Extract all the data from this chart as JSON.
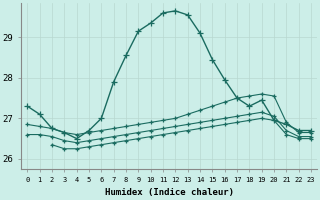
{
  "xlabel": "Humidex (Indice chaleur)",
  "background_color": "#cceee8",
  "line_color": "#1a6b60",
  "xlim": [
    -0.5,
    23.5
  ],
  "ylim": [
    25.75,
    29.85
  ],
  "yticks": [
    26,
    27,
    28,
    29
  ],
  "xticks": [
    0,
    1,
    2,
    3,
    4,
    5,
    6,
    7,
    8,
    9,
    10,
    11,
    12,
    13,
    14,
    15,
    16,
    17,
    18,
    19,
    20,
    21,
    22,
    23
  ],
  "series": [
    {
      "x": [
        0,
        1,
        2,
        3,
        4,
        5,
        6,
        7,
        8,
        9,
        10,
        11,
        12,
        13,
        14,
        15,
        16,
        17,
        18,
        19,
        20,
        21,
        22,
        23
      ],
      "y": [
        27.3,
        27.1,
        26.75,
        26.65,
        26.5,
        26.7,
        27.0,
        27.9,
        28.55,
        29.15,
        29.35,
        29.6,
        29.65,
        29.55,
        29.1,
        28.45,
        27.95,
        27.5,
        27.3,
        27.45,
        26.95,
        26.85,
        26.7,
        26.7
      ]
    },
    {
      "x": [
        0,
        1,
        2,
        3,
        4,
        5,
        6,
        7,
        8,
        9,
        10,
        11,
        12,
        13,
        14,
        15,
        16,
        17,
        18,
        19,
        20,
        21,
        22,
        23
      ],
      "y": [
        26.85,
        26.8,
        26.75,
        26.65,
        26.6,
        26.65,
        26.7,
        26.75,
        26.8,
        26.85,
        26.9,
        26.95,
        27.0,
        27.1,
        27.2,
        27.3,
        27.4,
        27.5,
        27.55,
        27.6,
        27.55,
        26.9,
        26.65,
        26.65
      ]
    },
    {
      "x": [
        0,
        1,
        2,
        3,
        4,
        5,
        6,
        7,
        8,
        9,
        10,
        11,
        12,
        13,
        14,
        15,
        16,
        17,
        18,
        19,
        20,
        21,
        22,
        23
      ],
      "y": [
        26.6,
        26.6,
        26.55,
        26.45,
        26.4,
        26.45,
        26.5,
        26.55,
        26.6,
        26.65,
        26.7,
        26.75,
        26.8,
        26.85,
        26.9,
        26.95,
        27.0,
        27.05,
        27.1,
        27.15,
        27.05,
        26.7,
        26.55,
        26.55
      ]
    },
    {
      "x": [
        2,
        3,
        4,
        5,
        6,
        7,
        8,
        9,
        10,
        11,
        12,
        13,
        14,
        15,
        16,
        17,
        18,
        19,
        20,
        21,
        22,
        23
      ],
      "y": [
        26.35,
        26.25,
        26.25,
        26.3,
        26.35,
        26.4,
        26.45,
        26.5,
        26.55,
        26.6,
        26.65,
        26.7,
        26.75,
        26.8,
        26.85,
        26.9,
        26.95,
        27.0,
        26.95,
        26.6,
        26.5,
        26.5
      ]
    }
  ]
}
